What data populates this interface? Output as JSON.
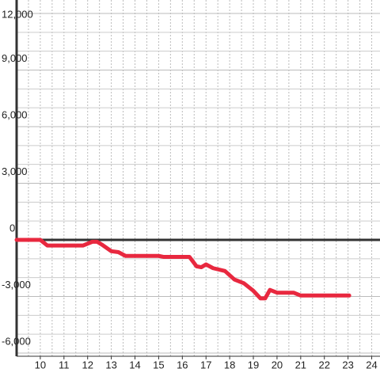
{
  "chart_data": {
    "type": "line",
    "x": [
      9,
      10,
      10.3,
      11.8,
      12.2,
      12.4,
      12.6,
      13,
      13.3,
      13.6,
      14.5,
      15,
      15.2,
      16.3,
      16.6,
      16.8,
      17,
      17.3,
      17.8,
      18.2,
      18.6,
      19,
      19.3,
      19.5,
      19.7,
      20,
      20.7,
      21,
      23.05
    ],
    "series": [
      {
        "color": "#e8283f",
        "values": [
          0,
          0,
          -300,
          -300,
          -100,
          -100,
          -250,
          -600,
          -650,
          -850,
          -850,
          -850,
          -900,
          -900,
          -1400,
          -1450,
          -1300,
          -1500,
          -1650,
          -2100,
          -2300,
          -2700,
          -3100,
          -3100,
          -2650,
          -2800,
          -2800,
          -2950,
          -2950
        ]
      }
    ],
    "xlim": [
      9,
      24.35
    ],
    "xticks": [
      10,
      11,
      12,
      13,
      14,
      15,
      16,
      17,
      18,
      19,
      20,
      21,
      22,
      23,
      24
    ],
    "minor_xticks": [
      9.5,
      10,
      10.5,
      11,
      11.5,
      12,
      12.5,
      13,
      13.5,
      14,
      14.5,
      15,
      15.5,
      16,
      16.5,
      17,
      17.5,
      18,
      18.5,
      19,
      19.5,
      20,
      20.5,
      21,
      21.5,
      22,
      22.5,
      23,
      23.5,
      24
    ],
    "ylim": [
      -6000,
      12000
    ],
    "yticks": [
      {
        "value": -6000,
        "label": "-6,000"
      },
      {
        "value": -3000,
        "label": "-3,000"
      },
      0,
      {
        "value": 3000,
        "label": "3,000"
      },
      {
        "value": 6000,
        "label": "6,000"
      },
      {
        "value": 9000,
        "label": "9,000"
      },
      {
        "value": 12000,
        "label": "12,000"
      }
    ],
    "minor_yticks": [
      -5000,
      -4000,
      -2000,
      -1000,
      1000,
      2000,
      4000,
      5000,
      7000,
      8000,
      10000,
      11000
    ],
    "grid": true
  }
}
